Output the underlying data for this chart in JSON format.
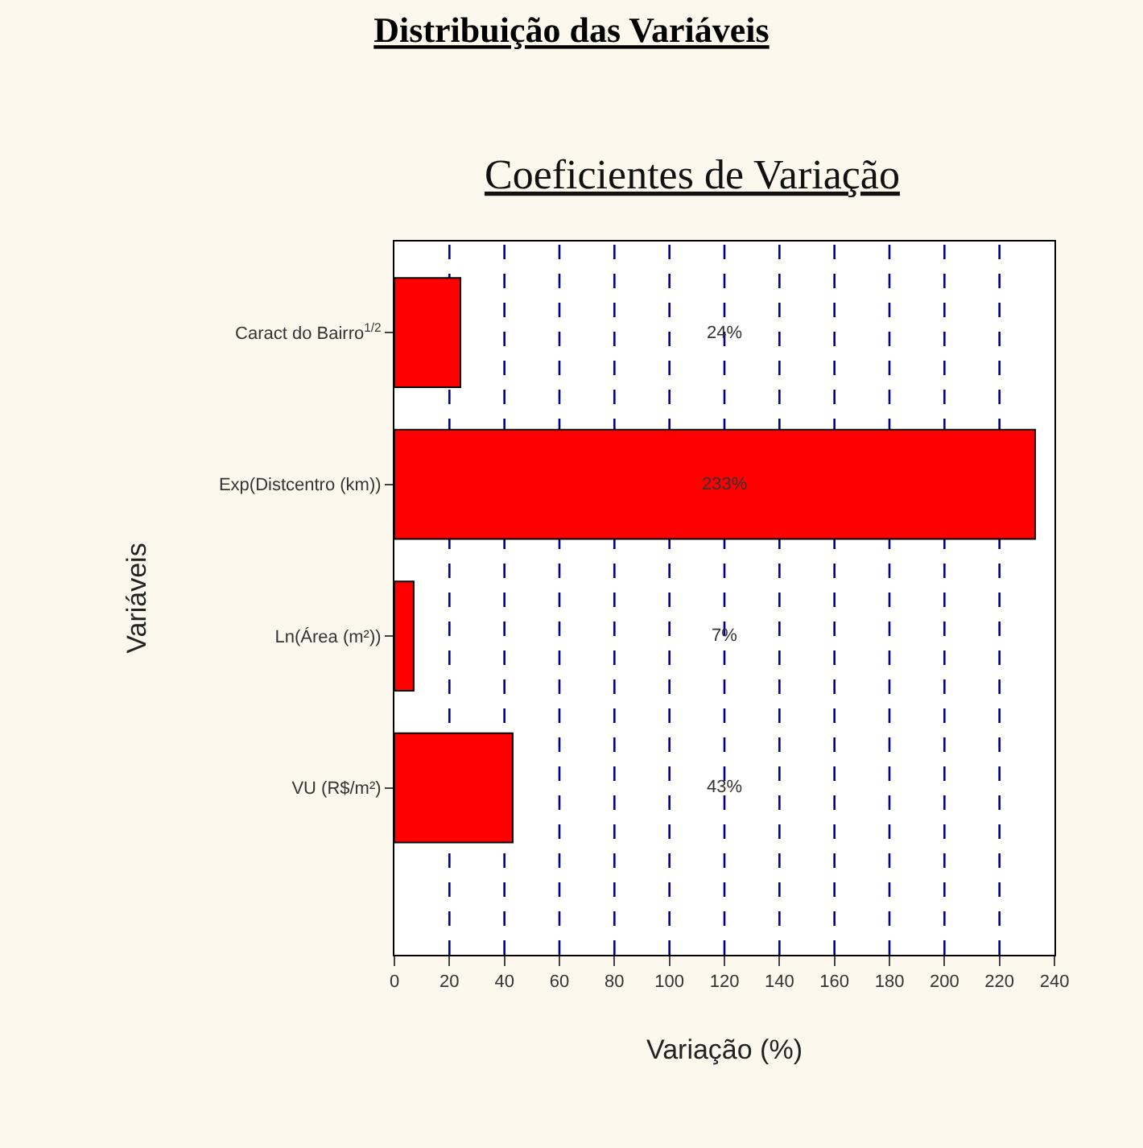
{
  "chart_data": {
    "type": "bar",
    "orientation": "horizontal",
    "title": "Distribuição das Variáveis",
    "subtitle": "Coeficientes de Variação",
    "xlabel": "Variação (%)",
    "ylabel": "Variáveis",
    "categories": [
      "Caract do Bairro$^{1/2}$",
      "Exp(Distcentro (km))",
      "Ln(Área (m²))",
      "VU (R$/m²)"
    ],
    "values": [
      24,
      233,
      7,
      43
    ],
    "value_labels": [
      "24%",
      "233%",
      "7%",
      "43%"
    ],
    "color": "#ff0000",
    "xlim": [
      0,
      240
    ],
    "xticks": [
      0,
      20,
      40,
      60,
      80,
      100,
      120,
      140,
      160,
      180,
      200,
      220,
      240
    ],
    "grid": "x",
    "line_style": "dashed",
    "legend": false
  }
}
